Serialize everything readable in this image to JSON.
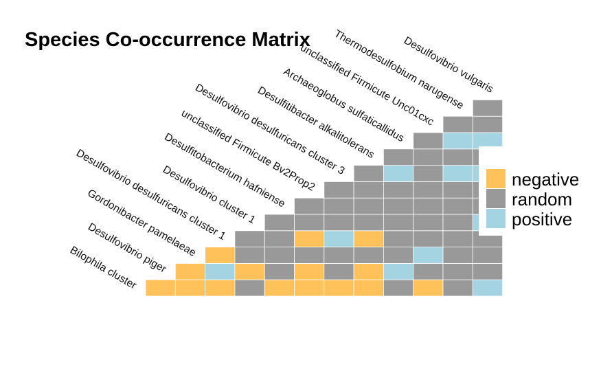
{
  "chart_data": {
    "type": "heatmap",
    "title": "Species Co-occurrence Matrix",
    "species": [
      "Bilophila cluster",
      "Desulfovibrio piger",
      "Gordonibacter pamelaeae",
      "Desulfovibrio desulfuricans cluster 1",
      "Desulfovibrio cluster 1",
      "Desulfitobacterium hafniense",
      "unclassified Firmicute Bv2Prop2",
      "Desulfovibrio desulfuricans cluster 3",
      "Desulfitibacter alkalitolerans",
      "Archaeoglobus sulfaticallidus",
      "unclassified Firmicute Unc01cxc",
      "Thermodesulfobium narugense",
      "Desulfovibrio vulgaris"
    ],
    "columns": 12,
    "matrix": [
      [
        "negative",
        "negative",
        "negative",
        "random",
        "negative",
        "negative",
        "negative",
        "negative",
        "random",
        "negative",
        "random",
        "positive"
      ],
      [
        "negative",
        "positive",
        "negative",
        "random",
        "negative",
        "random",
        "negative",
        "positive",
        "random",
        "random",
        "random"
      ],
      [
        "negative",
        "random",
        "random",
        "random",
        "random",
        "random",
        "random",
        "positive",
        "random",
        "random"
      ],
      [
        "random",
        "random",
        "negative",
        "positive",
        "negative",
        "random",
        "random",
        "random",
        "random"
      ],
      [
        "random",
        "random",
        "random",
        "random",
        "random",
        "random",
        "random",
        "positive"
      ],
      [
        "random",
        "random",
        "random",
        "random",
        "random",
        "random",
        "random"
      ],
      [
        "random",
        "random",
        "random",
        "random",
        "random",
        "random"
      ],
      [
        "random",
        "positive",
        "random",
        "positive",
        "positive"
      ],
      [
        "random",
        "random",
        "random",
        "random"
      ],
      [
        "random",
        "positive",
        "positive"
      ],
      [
        "random",
        "random"
      ],
      [
        "random"
      ]
    ],
    "legend": {
      "position": "right",
      "entries": [
        {
          "label": "negative",
          "color": "#ffc15a"
        },
        {
          "label": "random",
          "color": "#999999"
        },
        {
          "label": "positive",
          "color": "#a4d3e2"
        }
      ]
    }
  }
}
